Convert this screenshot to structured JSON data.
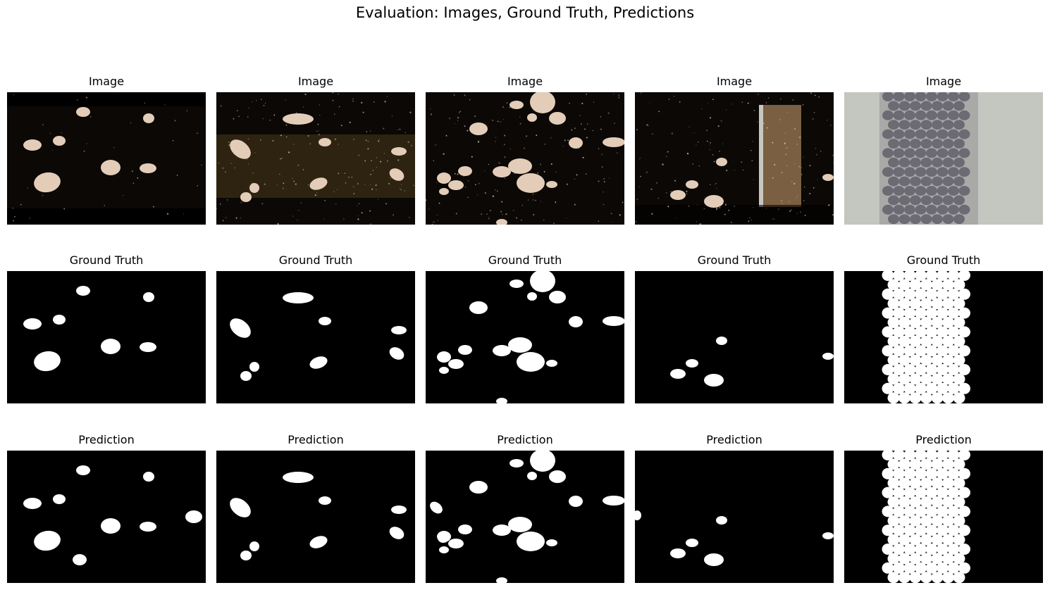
{
  "figure": {
    "title": "Evaluation: Images, Ground Truth, Predictions"
  },
  "rows": [
    {
      "label": "Image"
    },
    {
      "label": "Ground Truth"
    },
    {
      "label": "Prediction"
    }
  ],
  "colors": {
    "background": "#ffffff",
    "mask_background": "#000000",
    "mask_foreground": "#ffffff",
    "dark_photo_background": "#0b0806",
    "object_fill": "#e3cdb8",
    "sand_tint": "#8a6a2c",
    "bead_fill": "#6c6b74",
    "light_photo_background": "#c4c6c0"
  }
}
